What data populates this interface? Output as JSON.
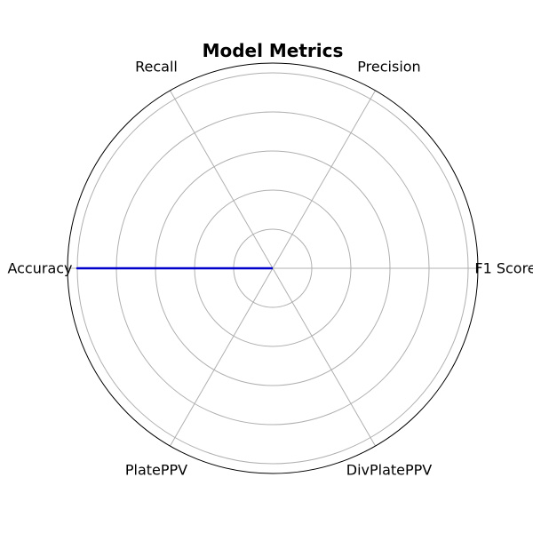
{
  "chart_data": {
    "type": "radar",
    "title": "Model Metrics",
    "axes": [
      "F1 Score",
      "Precision",
      "Recall",
      "Accuracy",
      "PlatePPV",
      "DivPlatePPV"
    ],
    "series": [
      {
        "values": [
          0,
          0,
          0,
          1.0,
          0,
          0
        ],
        "color": "#0000cc"
      }
    ],
    "rlim": [
      0,
      1.05
    ],
    "rgrid": [
      0.2,
      0.4,
      0.6,
      0.8,
      1.0
    ],
    "grid": true,
    "tick_labels_shown": false
  }
}
